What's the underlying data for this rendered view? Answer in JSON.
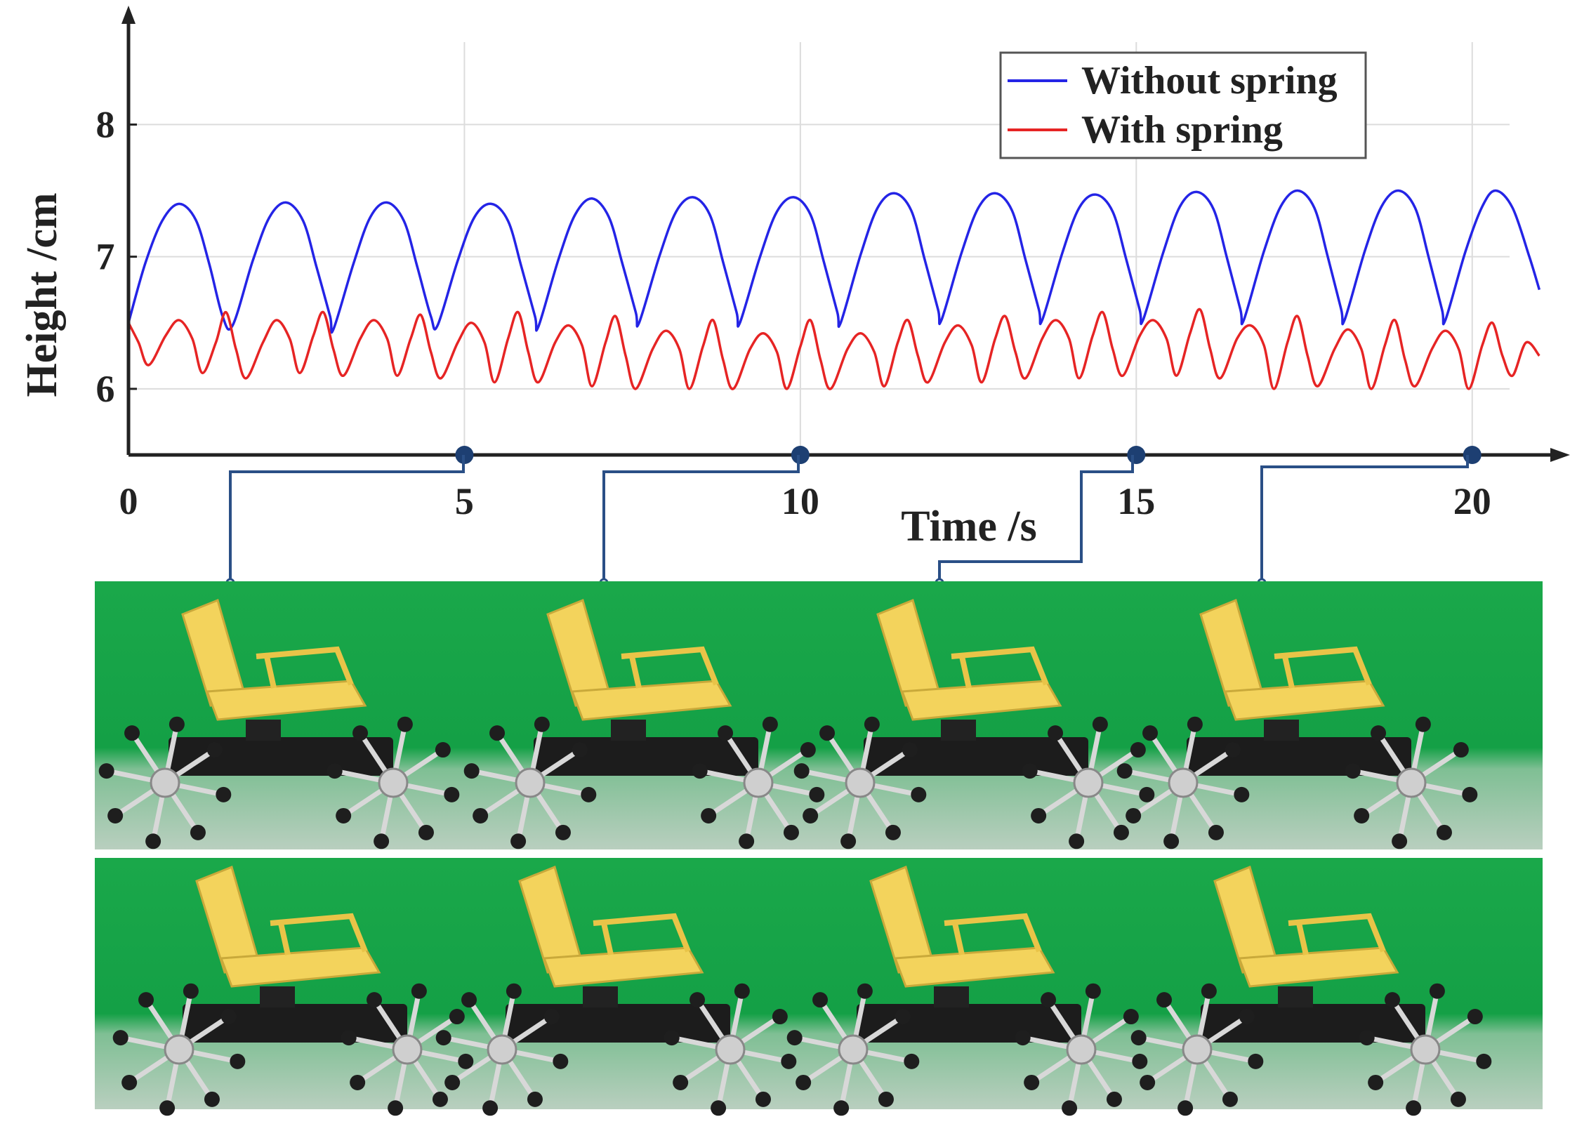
{
  "chart_data": {
    "type": "line",
    "title": "",
    "xlabel": "Time /s",
    "ylabel": "Height /cm",
    "xlim": [
      0,
      21.1
    ],
    "ylim": [
      5.5,
      8.9
    ],
    "xticks": [
      0,
      5,
      10,
      15,
      20
    ],
    "yticks": [
      6,
      7,
      8
    ],
    "xtick_labels": [
      "0",
      "5",
      "10",
      "15",
      "20"
    ],
    "ytick_labels": [
      "6",
      "7",
      "8"
    ],
    "grid": true,
    "legend_position": "top-right",
    "snapshot_times": [
      5,
      10,
      15,
      20
    ],
    "series": [
      {
        "name": "Without spring",
        "color": "#2424e6",
        "points": [
          [
            0,
            6.5
          ],
          [
            0.25,
            6.95
          ],
          [
            0.5,
            7.27
          ],
          [
            0.75,
            7.4
          ],
          [
            1.0,
            7.28
          ],
          [
            1.2,
            6.95
          ],
          [
            1.4,
            6.55
          ],
          [
            1.55,
            6.48
          ],
          [
            1.85,
            6.97
          ],
          [
            2.1,
            7.3
          ],
          [
            2.35,
            7.41
          ],
          [
            2.6,
            7.27
          ],
          [
            2.8,
            6.92
          ],
          [
            3.0,
            6.55
          ],
          [
            3.05,
            6.45
          ],
          [
            3.35,
            6.95
          ],
          [
            3.6,
            7.3
          ],
          [
            3.85,
            7.41
          ],
          [
            4.1,
            7.27
          ],
          [
            4.3,
            6.92
          ],
          [
            4.5,
            6.55
          ],
          [
            4.6,
            6.48
          ],
          [
            4.9,
            6.97
          ],
          [
            5.15,
            7.3
          ],
          [
            5.4,
            7.4
          ],
          [
            5.65,
            7.27
          ],
          [
            5.85,
            6.92
          ],
          [
            6.05,
            6.55
          ],
          [
            6.1,
            6.47
          ],
          [
            6.4,
            6.98
          ],
          [
            6.65,
            7.32
          ],
          [
            6.9,
            7.44
          ],
          [
            7.15,
            7.3
          ],
          [
            7.35,
            6.95
          ],
          [
            7.55,
            6.58
          ],
          [
            7.6,
            6.5
          ],
          [
            7.9,
            7.0
          ],
          [
            8.15,
            7.34
          ],
          [
            8.4,
            7.45
          ],
          [
            8.65,
            7.32
          ],
          [
            8.85,
            6.96
          ],
          [
            9.05,
            6.58
          ],
          [
            9.1,
            6.5
          ],
          [
            9.4,
            7.0
          ],
          [
            9.65,
            7.34
          ],
          [
            9.9,
            7.45
          ],
          [
            10.15,
            7.32
          ],
          [
            10.35,
            6.96
          ],
          [
            10.55,
            6.58
          ],
          [
            10.6,
            6.5
          ],
          [
            10.9,
            7.02
          ],
          [
            11.15,
            7.37
          ],
          [
            11.4,
            7.48
          ],
          [
            11.65,
            7.35
          ],
          [
            11.85,
            6.98
          ],
          [
            12.05,
            6.6
          ],
          [
            12.1,
            6.52
          ],
          [
            12.4,
            7.03
          ],
          [
            12.65,
            7.37
          ],
          [
            12.9,
            7.48
          ],
          [
            13.15,
            7.35
          ],
          [
            13.35,
            6.98
          ],
          [
            13.55,
            6.6
          ],
          [
            13.6,
            6.52
          ],
          [
            13.9,
            7.03
          ],
          [
            14.15,
            7.37
          ],
          [
            14.4,
            7.47
          ],
          [
            14.65,
            7.34
          ],
          [
            14.85,
            6.98
          ],
          [
            15.05,
            6.6
          ],
          [
            15.1,
            6.52
          ],
          [
            15.4,
            7.03
          ],
          [
            15.65,
            7.38
          ],
          [
            15.9,
            7.49
          ],
          [
            16.15,
            7.36
          ],
          [
            16.35,
            6.99
          ],
          [
            16.55,
            6.6
          ],
          [
            16.6,
            6.52
          ],
          [
            16.9,
            7.04
          ],
          [
            17.15,
            7.38
          ],
          [
            17.4,
            7.5
          ],
          [
            17.65,
            7.37
          ],
          [
            17.85,
            7.0
          ],
          [
            18.05,
            6.6
          ],
          [
            18.1,
            6.52
          ],
          [
            18.4,
            7.04
          ],
          [
            18.65,
            7.38
          ],
          [
            18.9,
            7.5
          ],
          [
            19.15,
            7.37
          ],
          [
            19.35,
            7.0
          ],
          [
            19.55,
            6.6
          ],
          [
            19.6,
            6.52
          ],
          [
            19.9,
            7.04
          ],
          [
            20.15,
            7.38
          ],
          [
            20.35,
            7.5
          ],
          [
            20.6,
            7.37
          ],
          [
            20.85,
            7.0
          ],
          [
            21.0,
            6.75
          ]
        ]
      },
      {
        "name": "With spring",
        "color": "#e62424",
        "points": [
          [
            0,
            6.5
          ],
          [
            0.15,
            6.35
          ],
          [
            0.3,
            6.18
          ],
          [
            0.55,
            6.4
          ],
          [
            0.75,
            6.52
          ],
          [
            0.95,
            6.38
          ],
          [
            1.1,
            6.12
          ],
          [
            1.3,
            6.35
          ],
          [
            1.45,
            6.58
          ],
          [
            1.6,
            6.3
          ],
          [
            1.75,
            6.08
          ],
          [
            2.0,
            6.35
          ],
          [
            2.2,
            6.52
          ],
          [
            2.4,
            6.38
          ],
          [
            2.55,
            6.12
          ],
          [
            2.75,
            6.4
          ],
          [
            2.9,
            6.58
          ],
          [
            3.05,
            6.3
          ],
          [
            3.2,
            6.1
          ],
          [
            3.45,
            6.38
          ],
          [
            3.65,
            6.52
          ],
          [
            3.85,
            6.38
          ],
          [
            4.0,
            6.1
          ],
          [
            4.2,
            6.38
          ],
          [
            4.35,
            6.56
          ],
          [
            4.5,
            6.28
          ],
          [
            4.65,
            6.08
          ],
          [
            4.9,
            6.35
          ],
          [
            5.1,
            6.5
          ],
          [
            5.3,
            6.35
          ],
          [
            5.45,
            6.05
          ],
          [
            5.65,
            6.38
          ],
          [
            5.8,
            6.58
          ],
          [
            5.95,
            6.28
          ],
          [
            6.1,
            6.05
          ],
          [
            6.35,
            6.35
          ],
          [
            6.55,
            6.48
          ],
          [
            6.75,
            6.33
          ],
          [
            6.9,
            6.02
          ],
          [
            7.1,
            6.35
          ],
          [
            7.25,
            6.55
          ],
          [
            7.4,
            6.25
          ],
          [
            7.55,
            6.0
          ],
          [
            7.8,
            6.3
          ],
          [
            8.0,
            6.44
          ],
          [
            8.2,
            6.3
          ],
          [
            8.35,
            6.0
          ],
          [
            8.55,
            6.32
          ],
          [
            8.7,
            6.52
          ],
          [
            8.85,
            6.22
          ],
          [
            9.0,
            6.0
          ],
          [
            9.25,
            6.3
          ],
          [
            9.45,
            6.42
          ],
          [
            9.65,
            6.28
          ],
          [
            9.8,
            6.0
          ],
          [
            10.0,
            6.32
          ],
          [
            10.15,
            6.52
          ],
          [
            10.3,
            6.22
          ],
          [
            10.45,
            6.0
          ],
          [
            10.7,
            6.3
          ],
          [
            10.9,
            6.42
          ],
          [
            11.1,
            6.28
          ],
          [
            11.25,
            6.02
          ],
          [
            11.45,
            6.35
          ],
          [
            11.6,
            6.52
          ],
          [
            11.75,
            6.25
          ],
          [
            11.9,
            6.05
          ],
          [
            12.15,
            6.35
          ],
          [
            12.35,
            6.48
          ],
          [
            12.55,
            6.33
          ],
          [
            12.7,
            6.05
          ],
          [
            12.9,
            6.38
          ],
          [
            13.05,
            6.55
          ],
          [
            13.2,
            6.28
          ],
          [
            13.35,
            6.08
          ],
          [
            13.6,
            6.38
          ],
          [
            13.8,
            6.52
          ],
          [
            14.0,
            6.38
          ],
          [
            14.15,
            6.08
          ],
          [
            14.35,
            6.4
          ],
          [
            14.5,
            6.58
          ],
          [
            14.65,
            6.3
          ],
          [
            14.8,
            6.1
          ],
          [
            15.05,
            6.4
          ],
          [
            15.25,
            6.52
          ],
          [
            15.45,
            6.38
          ],
          [
            15.6,
            6.1
          ],
          [
            15.8,
            6.42
          ],
          [
            15.95,
            6.6
          ],
          [
            16.1,
            6.3
          ],
          [
            16.25,
            6.08
          ],
          [
            16.5,
            6.38
          ],
          [
            16.7,
            6.48
          ],
          [
            16.9,
            6.33
          ],
          [
            17.05,
            6.0
          ],
          [
            17.25,
            6.35
          ],
          [
            17.4,
            6.55
          ],
          [
            17.55,
            6.25
          ],
          [
            17.7,
            6.02
          ],
          [
            17.95,
            6.3
          ],
          [
            18.15,
            6.45
          ],
          [
            18.35,
            6.3
          ],
          [
            18.5,
            6.0
          ],
          [
            18.7,
            6.33
          ],
          [
            18.85,
            6.52
          ],
          [
            19.0,
            6.22
          ],
          [
            19.15,
            6.02
          ],
          [
            19.4,
            6.3
          ],
          [
            19.6,
            6.44
          ],
          [
            19.8,
            6.3
          ],
          [
            19.95,
            6.0
          ],
          [
            20.15,
            6.33
          ],
          [
            20.3,
            6.5
          ],
          [
            20.45,
            6.25
          ],
          [
            20.6,
            6.1
          ],
          [
            20.8,
            6.35
          ],
          [
            21.0,
            6.25
          ]
        ]
      }
    ]
  }
}
